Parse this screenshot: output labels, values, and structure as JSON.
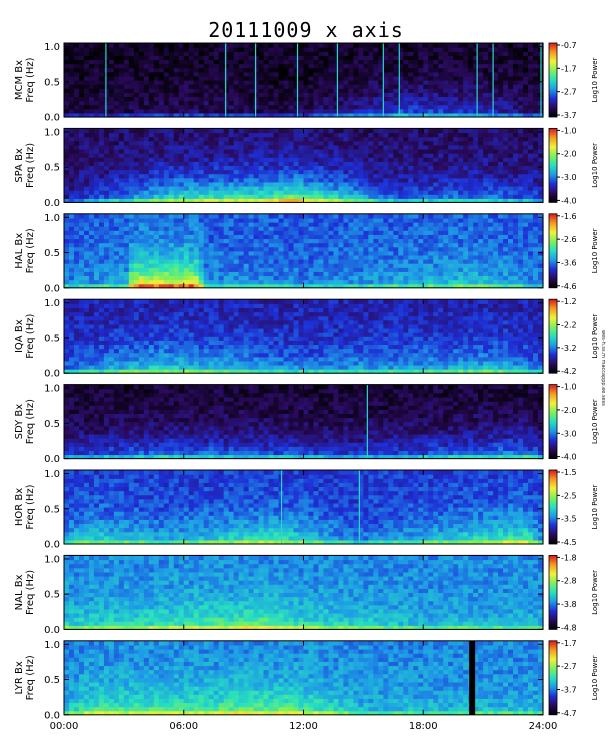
{
  "title": "20111009  x  axis",
  "side_note": "wes-h.ss.m maccappp.ee.sess",
  "chart_data": {
    "type": "heatmap",
    "title": "20111009  x  axis",
    "x_ticks": [
      "00:00",
      "06:00",
      "12:00",
      "18:00",
      "24:00"
    ],
    "xlim_hours": [
      0,
      24
    ],
    "ylabel_units": "Freq (Hz)",
    "y_ticks": [
      "0.0",
      "0.5",
      "1.0"
    ],
    "ylim_hz": [
      0,
      1.05
    ],
    "colorbar_label": "Log10 Power",
    "colormap": [
      "#000000",
      "#2a0a5c",
      "#1e2fd6",
      "#1e9be6",
      "#27e0c0",
      "#7ff05a",
      "#f3f03a",
      "#f39a22",
      "#e0141a"
    ],
    "panels": [
      {
        "station": "MCM Bx",
        "colorbar_ticks": [
          "-0.7",
          "-1.7",
          "-2.7",
          "-3.7"
        ],
        "background_level": 0.05,
        "activity": [
          [
            0.0,
            0.08
          ],
          [
            6.0,
            0.15
          ],
          [
            12.0,
            0.12
          ],
          [
            17.0,
            0.35
          ],
          [
            21.0,
            0.3
          ],
          [
            24.0,
            0.15
          ]
        ],
        "vertical_lines_hours": [
          2.1,
          8.1,
          9.6,
          11.7,
          13.7,
          16.0,
          16.8,
          20.7,
          21.5,
          23.9
        ]
      },
      {
        "station": "SPA Bx",
        "colorbar_ticks": [
          "-1.0",
          "-2.0",
          "-3.0",
          "-4.0"
        ],
        "background_level": 0.12,
        "activity": [
          [
            0.0,
            0.2
          ],
          [
            3.5,
            0.45
          ],
          [
            5.5,
            0.6
          ],
          [
            9.8,
            0.65
          ],
          [
            11.5,
            0.75
          ],
          [
            16.5,
            0.35
          ],
          [
            21.0,
            0.4
          ],
          [
            24.0,
            0.3
          ]
        ],
        "vertical_lines_hours": []
      },
      {
        "station": "HAL Bx",
        "colorbar_ticks": [
          "-1.6",
          "-2.6",
          "-3.6",
          "-4.6"
        ],
        "background_level": 0.3,
        "activity": [
          [
            0.0,
            0.35
          ],
          [
            3.2,
            0.45
          ],
          [
            3.4,
            0.85
          ],
          [
            6.8,
            0.85
          ],
          [
            7.0,
            0.4
          ],
          [
            12.0,
            0.35
          ],
          [
            20.5,
            0.5
          ],
          [
            24.0,
            0.35
          ]
        ],
        "vertical_lines_hours": []
      },
      {
        "station": "IQA Bx",
        "colorbar_ticks": [
          "-1.2",
          "-2.2",
          "-3.2",
          "-4.2"
        ],
        "background_level": 0.2,
        "activity": [
          [
            0.0,
            0.35
          ],
          [
            5.0,
            0.55
          ],
          [
            9.0,
            0.45
          ],
          [
            12.0,
            0.4
          ],
          [
            17.5,
            0.45
          ],
          [
            22.0,
            0.5
          ],
          [
            24.0,
            0.35
          ]
        ],
        "vertical_lines_hours": []
      },
      {
        "station": "SDY Bx",
        "colorbar_ticks": [
          "-1.0",
          "-2.0",
          "-3.0",
          "-4.0"
        ],
        "background_level": 0.06,
        "activity": [
          [
            0.0,
            0.3
          ],
          [
            5.5,
            0.4
          ],
          [
            10.0,
            0.35
          ],
          [
            15.2,
            0.3
          ],
          [
            17.5,
            0.35
          ],
          [
            23.0,
            0.45
          ],
          [
            24.0,
            0.3
          ]
        ],
        "vertical_lines_hours": [
          15.2
        ]
      },
      {
        "station": "HOR Bx",
        "colorbar_ticks": [
          "-1.5",
          "-2.5",
          "-3.5",
          "-4.5"
        ],
        "background_level": 0.25,
        "activity": [
          [
            0.0,
            0.4
          ],
          [
            1.0,
            0.55
          ],
          [
            5.0,
            0.45
          ],
          [
            10.5,
            0.6
          ],
          [
            14.8,
            0.35
          ],
          [
            23.0,
            0.65
          ],
          [
            24.0,
            0.4
          ]
        ],
        "vertical_lines_hours": [
          10.9,
          14.8
        ]
      },
      {
        "station": "NAL Bx",
        "colorbar_ticks": [
          "-1.8",
          "-2.8",
          "-3.8",
          "-4.8"
        ],
        "background_level": 0.35,
        "activity": [
          [
            0.0,
            0.5
          ],
          [
            4.0,
            0.55
          ],
          [
            10.0,
            0.65
          ],
          [
            12.0,
            0.55
          ],
          [
            18.0,
            0.45
          ],
          [
            24.0,
            0.45
          ]
        ],
        "vertical_lines_hours": []
      },
      {
        "station": "LYR Bx",
        "colorbar_ticks": [
          "-1.7",
          "-2.7",
          "-3.7",
          "-4.7"
        ],
        "background_level": 0.35,
        "activity": [
          [
            0.0,
            0.45
          ],
          [
            1.2,
            0.6
          ],
          [
            6.0,
            0.6
          ],
          [
            9.0,
            0.65
          ],
          [
            11.5,
            0.65
          ],
          [
            15.0,
            0.45
          ],
          [
            24.0,
            0.45
          ]
        ],
        "vertical_lines_hours": [],
        "data_gap_hours": [
          20.3,
          20.6
        ]
      }
    ]
  }
}
